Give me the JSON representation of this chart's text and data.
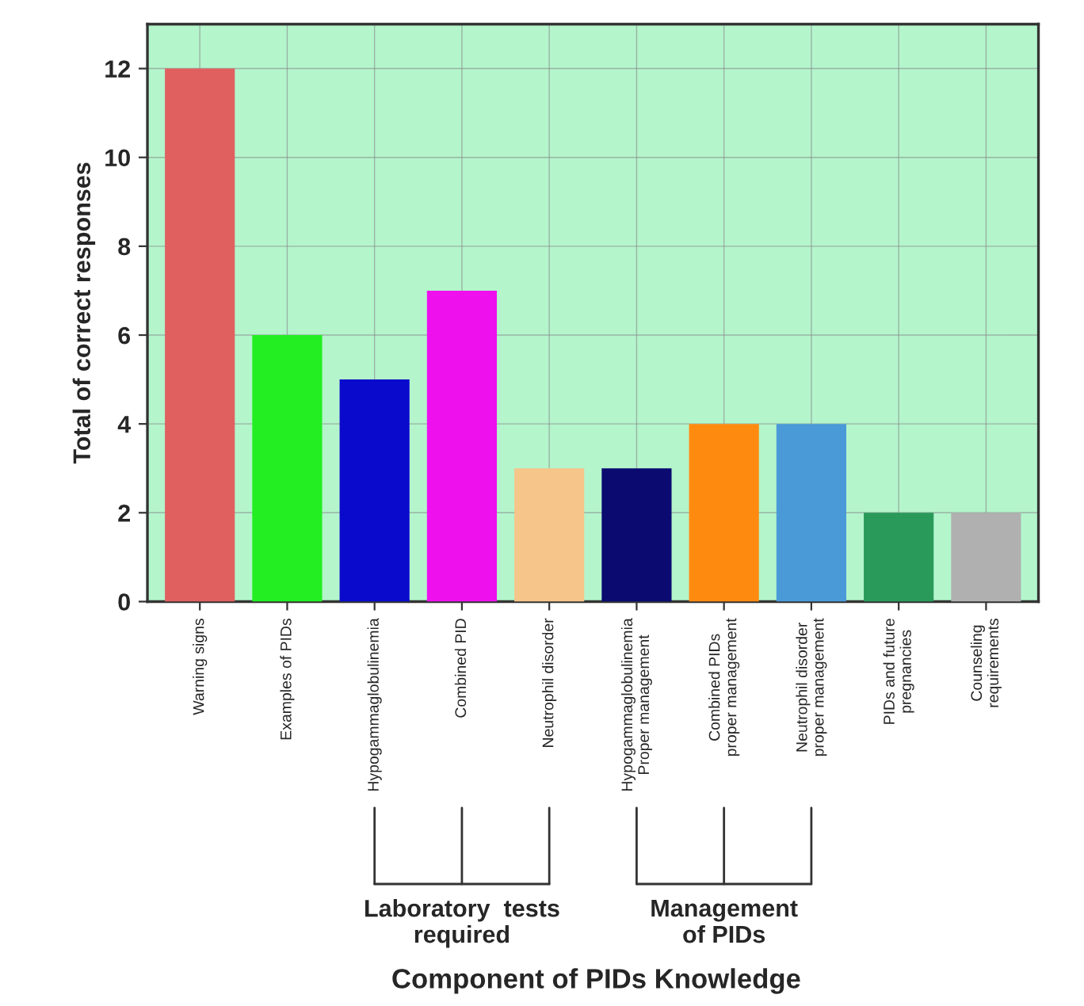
{
  "chart_data": {
    "type": "bar",
    "ylabel": "Total of correct responses",
    "categories": [
      "Warning signs",
      "Examples of PIDs",
      "Hypogammaglobulinemia",
      "Combined PID",
      "Neutrophil disorder",
      "Hypogammaglobulinemia\nProper management",
      "Combined PIDs\nproper management",
      "Neutrophil disorder\nproper management",
      "PIDs and future\npregnancies",
      "Counseling\nrequirements"
    ],
    "values": [
      12,
      6,
      5,
      7,
      3,
      3,
      4,
      4,
      2,
      2
    ],
    "colors": [
      "#e06060",
      "#22ee22",
      "#0a0acc",
      "#ee11ee",
      "#f5c58a",
      "#0a0a70",
      "#ff8a10",
      "#4a9ad8",
      "#2a9a5a",
      "#b0b0b0"
    ],
    "ylim": [
      0,
      13
    ],
    "yticks": [
      0,
      2,
      4,
      6,
      8,
      10,
      12
    ],
    "grid": true,
    "annotations": [
      {
        "text": "Laboratory  tests\nrequired",
        "x": "Combined PID"
      },
      {
        "text": "Management\nof PIDs",
        "x": "Combined PIDs\nproper management"
      },
      "Component of PIDs Knowledge"
    ]
  }
}
